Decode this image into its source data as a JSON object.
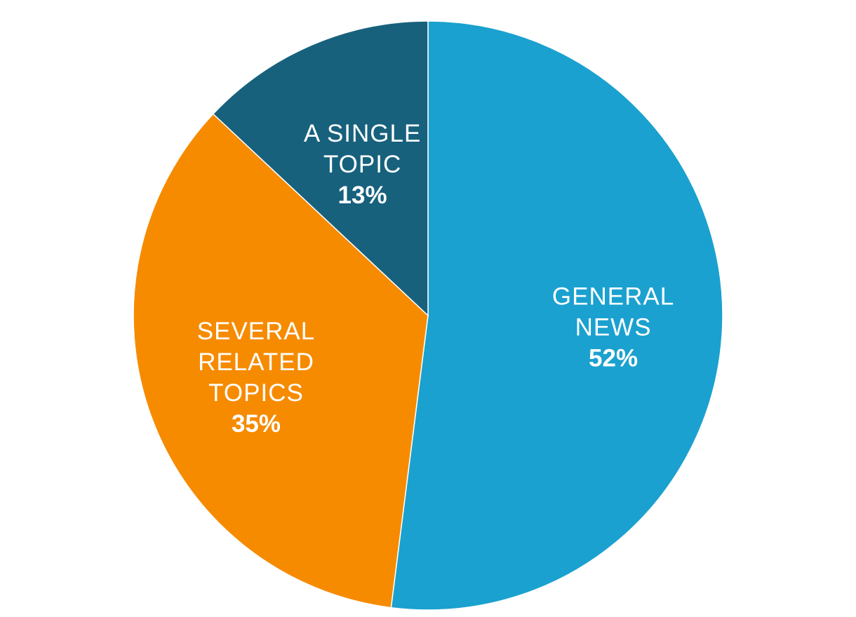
{
  "chart_data": {
    "type": "pie",
    "title": "",
    "legend": "none",
    "slices": [
      {
        "name": "GENERAL NEWS",
        "label_lines": [
          "GENERAL",
          "NEWS"
        ],
        "value": 52,
        "value_label": "52%",
        "color": "#1aa1cf"
      },
      {
        "name": "SEVERAL RELATED TOPICS",
        "label_lines": [
          "SEVERAL",
          "RELATED",
          "TOPICS"
        ],
        "value": 35,
        "value_label": "35%",
        "color": "#f68b00"
      },
      {
        "name": "A SINGLE TOPIC",
        "label_lines": [
          "A SINGLE",
          "TOPIC"
        ],
        "value": 13,
        "value_label": "13%",
        "color": "#17617d"
      }
    ]
  }
}
